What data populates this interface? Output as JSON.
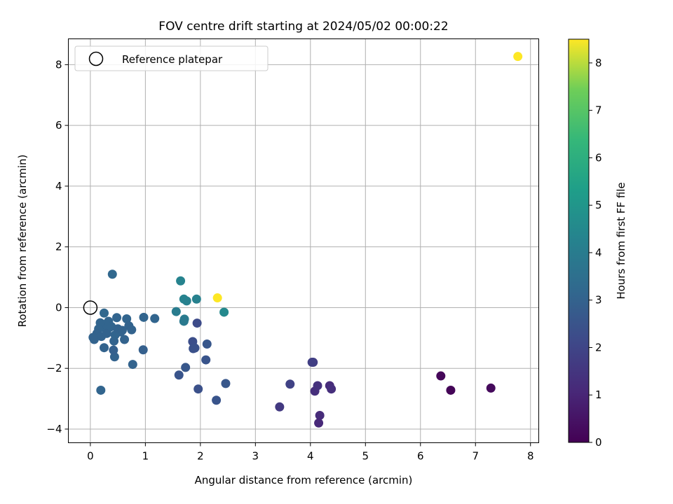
{
  "chart_data": {
    "type": "scatter",
    "title": "FOV centre drift starting at 2024/05/02 00:00:22",
    "xlabel": "Angular distance from reference (arcmin)",
    "ylabel": "Rotation from reference (arcmin)",
    "xlim": [
      -0.4,
      8.15
    ],
    "ylim": [
      -4.45,
      8.85
    ],
    "xticks": [
      0,
      1,
      2,
      3,
      4,
      5,
      6,
      7,
      8
    ],
    "yticks": [
      -4,
      -2,
      0,
      2,
      4,
      6,
      8
    ],
    "grid": true,
    "legend": {
      "placement": "top-left",
      "entries": [
        "Reference platepar"
      ]
    },
    "reference_point": {
      "x": 0,
      "y": 0
    },
    "colorbar": {
      "label": "Hours from first FF file",
      "colormap": "viridis",
      "range": [
        0,
        8.5
      ],
      "ticks": [
        0,
        1,
        2,
        3,
        4,
        5,
        6,
        7,
        8
      ]
    },
    "points": [
      {
        "x": 7.77,
        "y": 8.27,
        "c": 8.5
      },
      {
        "x": 6.37,
        "y": -2.25,
        "c": 0.15
      },
      {
        "x": 6.55,
        "y": -2.72,
        "c": 0.1
      },
      {
        "x": 7.28,
        "y": -2.65,
        "c": 0.25
      },
      {
        "x": 4.05,
        "y": -1.8,
        "c": 1.7
      },
      {
        "x": 4.03,
        "y": -1.8,
        "c": 1.8
      },
      {
        "x": 3.63,
        "y": -2.52,
        "c": 1.9
      },
      {
        "x": 3.44,
        "y": -3.27,
        "c": 1.6
      },
      {
        "x": 4.08,
        "y": -2.75,
        "c": 1.3
      },
      {
        "x": 4.13,
        "y": -2.57,
        "c": 1.4
      },
      {
        "x": 4.35,
        "y": -2.57,
        "c": 1.2
      },
      {
        "x": 4.38,
        "y": -2.68,
        "c": 1.3
      },
      {
        "x": 4.17,
        "y": -3.55,
        "c": 1.2
      },
      {
        "x": 4.15,
        "y": -3.8,
        "c": 1.1
      },
      {
        "x": 2.31,
        "y": 0.32,
        "c": 8.5
      },
      {
        "x": 2.43,
        "y": -0.15,
        "c": 4.5
      },
      {
        "x": 1.64,
        "y": 0.88,
        "c": 4.3
      },
      {
        "x": 1.7,
        "y": 0.28,
        "c": 4.3
      },
      {
        "x": 1.75,
        "y": 0.22,
        "c": 4.2
      },
      {
        "x": 1.93,
        "y": 0.28,
        "c": 4.2
      },
      {
        "x": 1.56,
        "y": -0.13,
        "c": 4.0
      },
      {
        "x": 1.71,
        "y": -0.38,
        "c": 4.0
      },
      {
        "x": 1.7,
        "y": -0.45,
        "c": 3.9
      },
      {
        "x": 1.94,
        "y": -0.51,
        "c": 2.2
      },
      {
        "x": 1.86,
        "y": -1.12,
        "c": 2.3
      },
      {
        "x": 1.87,
        "y": -1.35,
        "c": 2.4
      },
      {
        "x": 1.9,
        "y": -1.33,
        "c": 2.4
      },
      {
        "x": 2.12,
        "y": -1.2,
        "c": 2.6
      },
      {
        "x": 2.1,
        "y": -1.72,
        "c": 2.5
      },
      {
        "x": 1.73,
        "y": -1.97,
        "c": 2.6
      },
      {
        "x": 1.61,
        "y": -2.22,
        "c": 2.5
      },
      {
        "x": 1.96,
        "y": -2.68,
        "c": 2.4
      },
      {
        "x": 2.29,
        "y": -3.05,
        "c": 2.5
      },
      {
        "x": 2.46,
        "y": -2.5,
        "c": 2.6
      },
      {
        "x": 0.4,
        "y": 1.1,
        "c": 3.2
      },
      {
        "x": 0.97,
        "y": -0.32,
        "c": 3.1
      },
      {
        "x": 1.17,
        "y": -0.36,
        "c": 3.1
      },
      {
        "x": 0.96,
        "y": -1.39,
        "c": 2.9
      },
      {
        "x": 0.77,
        "y": -1.87,
        "c": 3.0
      },
      {
        "x": 0.19,
        "y": -2.72,
        "c": 3.1
      },
      {
        "x": 0.44,
        "y": -1.62,
        "c": 3.0
      },
      {
        "x": 0.25,
        "y": -1.32,
        "c": 3.0
      },
      {
        "x": 0.42,
        "y": -1.4,
        "c": 2.9
      },
      {
        "x": 0.25,
        "y": -0.18,
        "c": 3.2
      },
      {
        "x": 0.48,
        "y": -0.33,
        "c": 3.1
      },
      {
        "x": 0.66,
        "y": -0.37,
        "c": 3.1
      },
      {
        "x": 0.7,
        "y": -0.6,
        "c": 3.0
      },
      {
        "x": 0.75,
        "y": -0.73,
        "c": 3.0
      },
      {
        "x": 0.55,
        "y": -0.8,
        "c": 3.0
      },
      {
        "x": 0.62,
        "y": -1.05,
        "c": 3.0
      },
      {
        "x": 0.43,
        "y": -1.1,
        "c": 3.0
      },
      {
        "x": 0.45,
        "y": -0.9,
        "c": 3.1
      },
      {
        "x": 0.35,
        "y": -0.65,
        "c": 3.1
      },
      {
        "x": 0.28,
        "y": -0.7,
        "c": 3.1
      },
      {
        "x": 0.22,
        "y": -0.55,
        "c": 3.1
      },
      {
        "x": 0.18,
        "y": -0.5,
        "c": 3.1
      },
      {
        "x": 0.15,
        "y": -0.7,
        "c": 3.1
      },
      {
        "x": 0.12,
        "y": -0.85,
        "c": 3.0
      },
      {
        "x": 0.2,
        "y": -0.95,
        "c": 3.0
      },
      {
        "x": 0.07,
        "y": -1.05,
        "c": 3.0
      },
      {
        "x": 0.05,
        "y": -0.98,
        "c": 3.0
      },
      {
        "x": 0.3,
        "y": -0.85,
        "c": 3.0
      },
      {
        "x": 0.33,
        "y": -0.45,
        "c": 3.1
      },
      {
        "x": 0.38,
        "y": -0.62,
        "c": 3.1
      },
      {
        "x": 0.5,
        "y": -0.7,
        "c": 3.0
      },
      {
        "x": 0.58,
        "y": -0.75,
        "c": 3.0
      }
    ]
  }
}
